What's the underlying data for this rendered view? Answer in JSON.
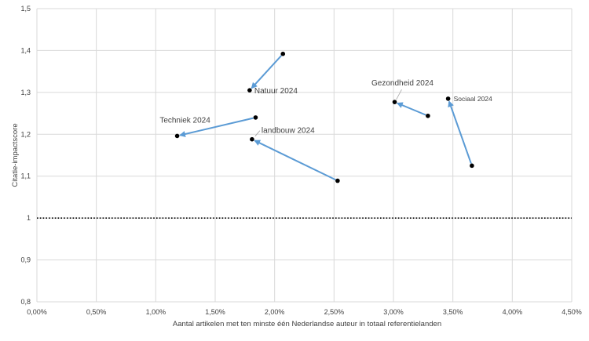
{
  "chart_data": {
    "type": "scatter",
    "title": "",
    "xlabel": "Aantal artikelen met ten minste één Nederlandse auteur in totaal referentielanden",
    "ylabel": "Citatie-impactscore",
    "xlim": [
      0.0,
      0.045
    ],
    "ylim": [
      0.8,
      1.5
    ],
    "x_ticks": [
      0.0,
      0.005,
      0.01,
      0.015,
      0.02,
      0.025,
      0.03,
      0.035,
      0.04,
      0.045
    ],
    "x_tick_labels": [
      "0,00%",
      "0,50%",
      "1,00%",
      "1,50%",
      "2,00%",
      "2,50%",
      "3,00%",
      "3,50%",
      "4,00%",
      "4,50%"
    ],
    "y_ticks": [
      0.8,
      0.9,
      1.0,
      1.1,
      1.2,
      1.3,
      1.4,
      1.5
    ],
    "y_tick_labels": [
      "0,8",
      "0,9",
      "1",
      "1,1",
      "1,2",
      "1,3",
      "1,4",
      "1,5"
    ],
    "grid": "vertical and horizontal",
    "reference_line": {
      "y": 1.0,
      "style": "dotted"
    },
    "arrow_color": "#5b9bd5",
    "marker_color": "#000000",
    "series": [
      {
        "name": "Natuur 2024",
        "from": {
          "x": 0.0207,
          "y": 1.392
        },
        "to": {
          "x": 0.0179,
          "y": 1.305
        }
      },
      {
        "name": "Techniek 2024",
        "from": {
          "x": 0.0184,
          "y": 1.24
        },
        "to": {
          "x": 0.0118,
          "y": 1.196
        }
      },
      {
        "name": "landbouw 2024",
        "from": {
          "x": 0.0253,
          "y": 1.089
        },
        "to": {
          "x": 0.0181,
          "y": 1.188
        }
      },
      {
        "name": "Gezondheid 2024",
        "from": {
          "x": 0.0329,
          "y": 1.244
        },
        "to": {
          "x": 0.0301,
          "y": 1.277
        }
      },
      {
        "name": "Sociaal 2024",
        "from": {
          "x": 0.0366,
          "y": 1.125
        },
        "to": {
          "x": 0.0346,
          "y": 1.285
        }
      }
    ]
  }
}
